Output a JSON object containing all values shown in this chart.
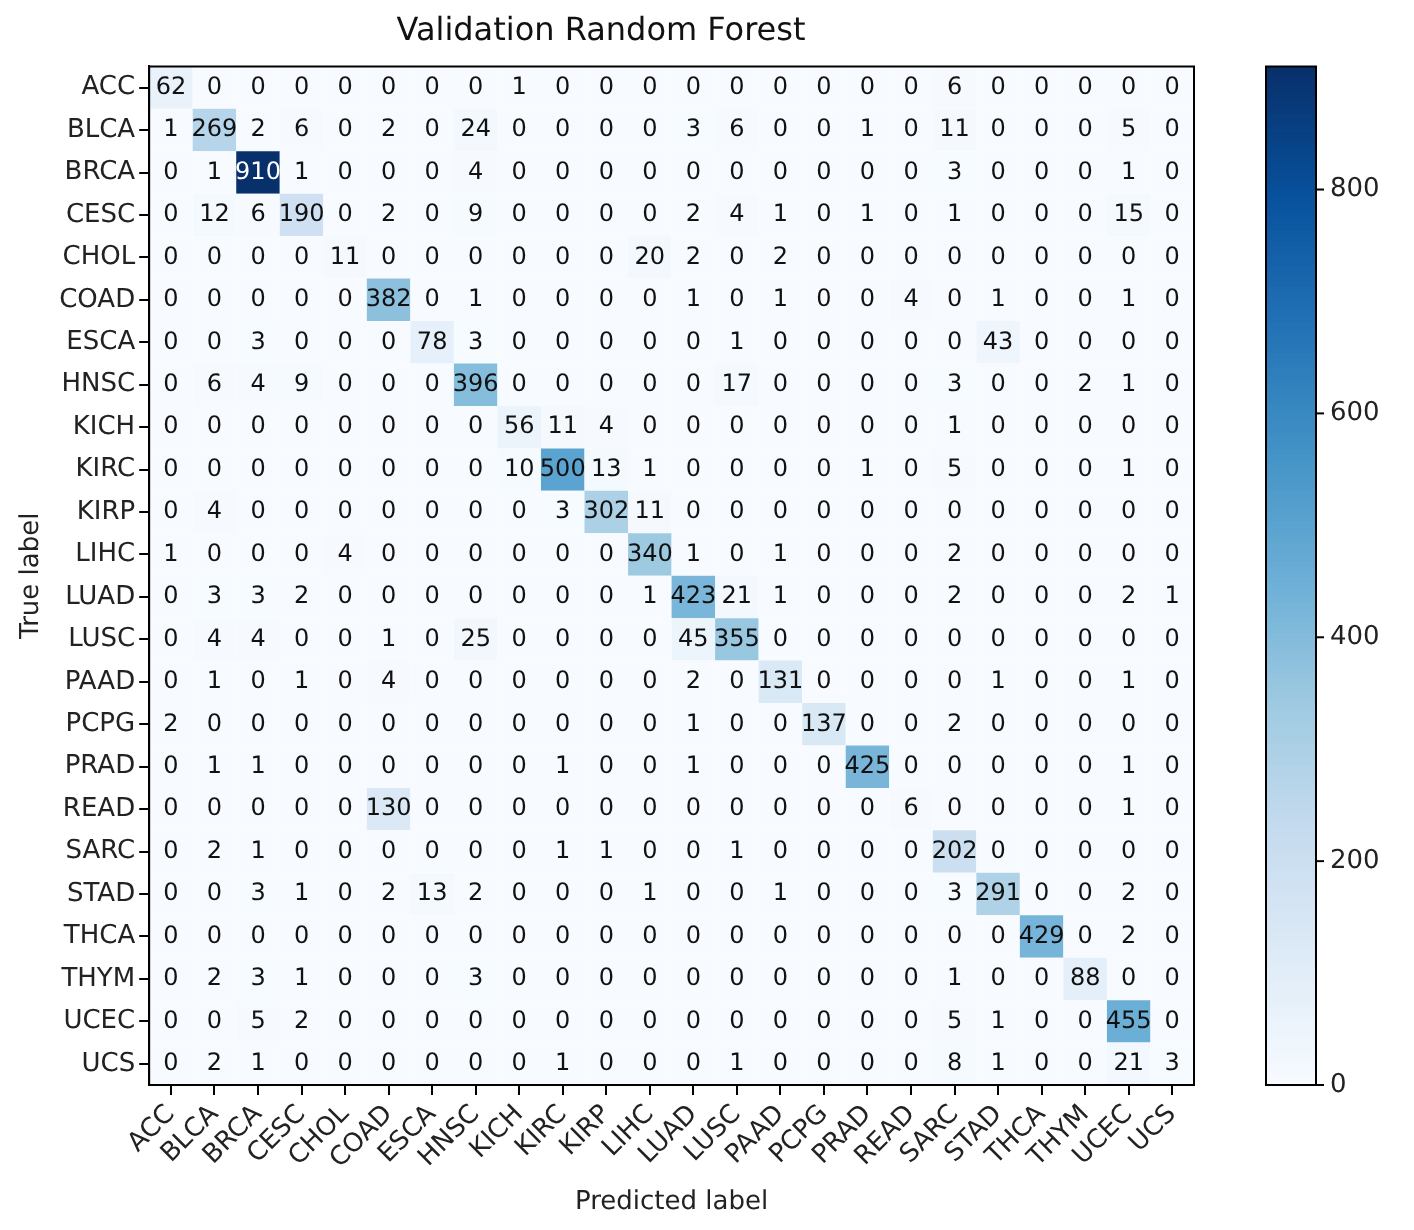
{
  "chart_data": {
    "type": "heatmap",
    "title": "Validation Random Forest",
    "xlabel": "Predicted label",
    "ylabel": "True label",
    "categories": [
      "ACC",
      "BLCA",
      "BRCA",
      "CESC",
      "CHOL",
      "COAD",
      "ESCA",
      "HNSC",
      "KICH",
      "KIRC",
      "KIRP",
      "LIHC",
      "LUAD",
      "LUSC",
      "PAAD",
      "PCPG",
      "PRAD",
      "READ",
      "SARC",
      "STAD",
      "THCA",
      "THYM",
      "UCEC",
      "UCS"
    ],
    "y_categories": [
      "ACC",
      "BLCA",
      "BRCA",
      "CESC",
      "CHOL",
      "COAD",
      "ESCA",
      "HNSC",
      "KICH",
      "KIRC",
      "KIRP",
      "LIHC",
      "LUAD",
      "LUSC",
      "PAAD",
      "PCPG",
      "PRAD",
      "READ",
      "SARC",
      "STAD",
      "THCA",
      "THYM",
      "UCEC",
      "UCS"
    ],
    "cells": [
      [
        62,
        0,
        0,
        0,
        0,
        0,
        0,
        0,
        1,
        0,
        0,
        0,
        0,
        0,
        0,
        0,
        0,
        0,
        6,
        0,
        0,
        0,
        0,
        0
      ],
      [
        1,
        269,
        2,
        6,
        0,
        2,
        0,
        24,
        0,
        0,
        0,
        0,
        3,
        6,
        0,
        0,
        1,
        0,
        11,
        0,
        0,
        0,
        5,
        0
      ],
      [
        0,
        1,
        910,
        1,
        0,
        0,
        0,
        4,
        0,
        0,
        0,
        0,
        0,
        0,
        0,
        0,
        0,
        0,
        3,
        0,
        0,
        0,
        1,
        0
      ],
      [
        0,
        12,
        6,
        190,
        0,
        2,
        0,
        9,
        0,
        0,
        0,
        0,
        2,
        4,
        1,
        0,
        1,
        0,
        1,
        0,
        0,
        0,
        15,
        0
      ],
      [
        0,
        0,
        0,
        0,
        11,
        0,
        0,
        0,
        0,
        0,
        0,
        20,
        2,
        0,
        2,
        0,
        0,
        0,
        0,
        0,
        0,
        0,
        0,
        0
      ],
      [
        0,
        0,
        0,
        0,
        0,
        382,
        0,
        1,
        0,
        0,
        0,
        0,
        1,
        0,
        1,
        0,
        0,
        4,
        0,
        1,
        0,
        0,
        1,
        0
      ],
      [
        0,
        0,
        3,
        0,
        0,
        0,
        78,
        3,
        0,
        0,
        0,
        0,
        0,
        1,
        0,
        0,
        0,
        0,
        0,
        43,
        0,
        0,
        0,
        0
      ],
      [
        0,
        6,
        4,
        9,
        0,
        0,
        0,
        396,
        0,
        0,
        0,
        0,
        0,
        17,
        0,
        0,
        0,
        0,
        3,
        0,
        0,
        2,
        1,
        0
      ],
      [
        0,
        0,
        0,
        0,
        0,
        0,
        0,
        0,
        56,
        11,
        4,
        0,
        0,
        0,
        0,
        0,
        0,
        0,
        1,
        0,
        0,
        0,
        0,
        0
      ],
      [
        0,
        0,
        0,
        0,
        0,
        0,
        0,
        0,
        10,
        500,
        13,
        1,
        0,
        0,
        0,
        0,
        1,
        0,
        5,
        0,
        0,
        0,
        1,
        0
      ],
      [
        0,
        4,
        0,
        0,
        0,
        0,
        0,
        0,
        0,
        3,
        302,
        11,
        0,
        0,
        0,
        0,
        0,
        0,
        0,
        0,
        0,
        0,
        0,
        0
      ],
      [
        1,
        0,
        0,
        0,
        4,
        0,
        0,
        0,
        0,
        0,
        0,
        340,
        1,
        0,
        1,
        0,
        0,
        0,
        2,
        0,
        0,
        0,
        0,
        0
      ],
      [
        0,
        3,
        3,
        2,
        0,
        0,
        0,
        0,
        0,
        0,
        0,
        1,
        423,
        21,
        1,
        0,
        0,
        0,
        2,
        0,
        0,
        0,
        2,
        1
      ],
      [
        0,
        4,
        4,
        0,
        0,
        1,
        0,
        25,
        0,
        0,
        0,
        0,
        45,
        355,
        0,
        0,
        0,
        0,
        0,
        0,
        0,
        0,
        0,
        0
      ],
      [
        0,
        1,
        0,
        1,
        0,
        4,
        0,
        0,
        0,
        0,
        0,
        0,
        2,
        0,
        131,
        0,
        0,
        0,
        0,
        1,
        0,
        0,
        1,
        0
      ],
      [
        2,
        0,
        0,
        0,
        0,
        0,
        0,
        0,
        0,
        0,
        0,
        0,
        1,
        0,
        0,
        137,
        0,
        0,
        2,
        0,
        0,
        0,
        0,
        0
      ],
      [
        0,
        1,
        1,
        0,
        0,
        0,
        0,
        0,
        0,
        1,
        0,
        0,
        1,
        0,
        0,
        0,
        425,
        0,
        0,
        0,
        0,
        0,
        1,
        0
      ],
      [
        0,
        0,
        0,
        0,
        0,
        130,
        0,
        0,
        0,
        0,
        0,
        0,
        0,
        0,
        0,
        0,
        0,
        6,
        0,
        0,
        0,
        0,
        1,
        0
      ],
      [
        0,
        2,
        1,
        0,
        0,
        0,
        0,
        0,
        0,
        1,
        1,
        0,
        0,
        1,
        0,
        0,
        0,
        0,
        202,
        0,
        0,
        0,
        0,
        0
      ],
      [
        0,
        0,
        3,
        1,
        0,
        2,
        13,
        2,
        0,
        0,
        0,
        1,
        0,
        0,
        1,
        0,
        0,
        0,
        3,
        291,
        0,
        0,
        2,
        0
      ],
      [
        0,
        0,
        0,
        0,
        0,
        0,
        0,
        0,
        0,
        0,
        0,
        0,
        0,
        0,
        0,
        0,
        0,
        0,
        0,
        0,
        429,
        0,
        2,
        0
      ],
      [
        0,
        2,
        3,
        1,
        0,
        0,
        0,
        3,
        0,
        0,
        0,
        0,
        0,
        0,
        0,
        0,
        0,
        0,
        1,
        0,
        0,
        88,
        0,
        0
      ],
      [
        0,
        0,
        5,
        2,
        0,
        0,
        0,
        0,
        0,
        0,
        0,
        0,
        0,
        0,
        0,
        0,
        0,
        0,
        5,
        1,
        0,
        0,
        455,
        0
      ],
      [
        0,
        2,
        1,
        0,
        0,
        0,
        0,
        0,
        0,
        1,
        0,
        0,
        0,
        1,
        0,
        0,
        0,
        0,
        8,
        1,
        0,
        0,
        21,
        3
      ]
    ],
    "clim": [
      0,
      910
    ],
    "cticks": [
      0,
      200,
      400,
      600,
      800
    ],
    "data_labels": true
  }
}
